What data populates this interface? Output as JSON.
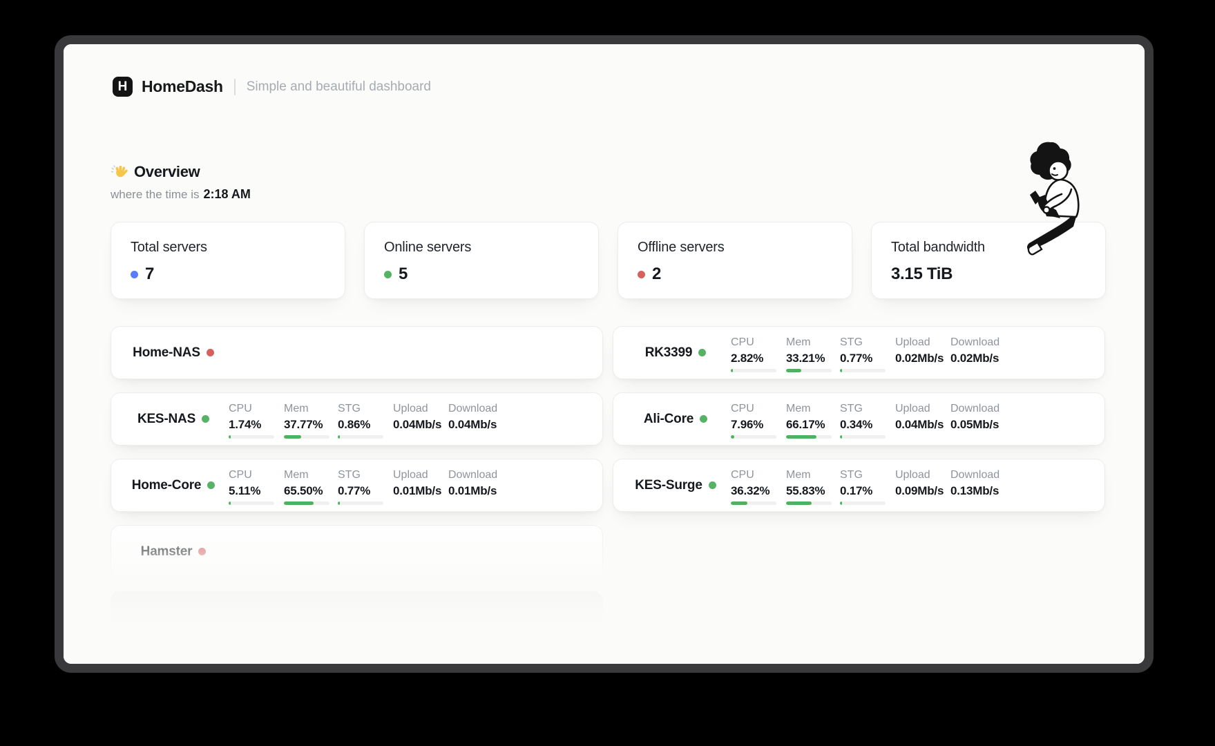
{
  "header": {
    "logo_letter": "H",
    "title": "HomeDash",
    "subtitle": "Simple and beautiful dashboard"
  },
  "overview": {
    "wave_emoji": "👋",
    "title": "Overview",
    "time_prefix": "where the time is",
    "time": "2:18 AM"
  },
  "stats": [
    {
      "label": "Total servers",
      "value": "7",
      "dot": "#5b7cfa"
    },
    {
      "label": "Online servers",
      "value": "5",
      "dot": "#54b365"
    },
    {
      "label": "Offline servers",
      "value": "2",
      "dot": "#d6605d"
    },
    {
      "label": "Total bandwidth",
      "value": "3.15 TiB",
      "dot": null
    }
  ],
  "metric_labels": {
    "cpu": "CPU",
    "mem": "Mem",
    "stg": "STG",
    "upload": "Upload",
    "download": "Download"
  },
  "servers": {
    "left": [
      {
        "name": "Home-NAS",
        "online": false,
        "dot": "#d6605d"
      },
      {
        "name": "KES-NAS",
        "online": true,
        "dot": "#54b365",
        "cpu": "1.74%",
        "cpu_pct": 1.74,
        "mem": "37.77%",
        "mem_pct": 37.77,
        "stg": "0.86%",
        "stg_pct": 0.86,
        "upload": "0.04Mb/s",
        "download": "0.04Mb/s"
      },
      {
        "name": "Home-Core",
        "online": true,
        "dot": "#54b365",
        "cpu": "5.11%",
        "cpu_pct": 5.11,
        "mem": "65.50%",
        "mem_pct": 65.5,
        "stg": "0.77%",
        "stg_pct": 0.77,
        "upload": "0.01Mb/s",
        "download": "0.01Mb/s"
      },
      {
        "name": "Hamster",
        "online": false,
        "dot": "#d6605d",
        "faded": true
      }
    ],
    "right": [
      {
        "name": "RK3399",
        "online": true,
        "dot": "#54b365",
        "cpu": "2.82%",
        "cpu_pct": 2.82,
        "mem": "33.21%",
        "mem_pct": 33.21,
        "stg": "0.77%",
        "stg_pct": 0.77,
        "upload": "0.02Mb/s",
        "download": "0.02Mb/s"
      },
      {
        "name": "Ali-Core",
        "online": true,
        "dot": "#54b365",
        "cpu": "7.96%",
        "cpu_pct": 7.96,
        "mem": "66.17%",
        "mem_pct": 66.17,
        "stg": "0.34%",
        "stg_pct": 0.34,
        "upload": "0.04Mb/s",
        "download": "0.05Mb/s"
      },
      {
        "name": "KES-Surge",
        "online": true,
        "dot": "#54b365",
        "cpu": "36.32%",
        "cpu_pct": 36.32,
        "mem": "55.83%",
        "mem_pct": 55.83,
        "stg": "0.17%",
        "stg_pct": 0.17,
        "upload": "0.09Mb/s",
        "download": "0.13Mb/s"
      }
    ]
  },
  "colors": {
    "accent_blue": "#5b7cfa",
    "accent_green": "#54b365",
    "accent_red": "#d6605d",
    "bar_fill": "#4eb25d"
  }
}
